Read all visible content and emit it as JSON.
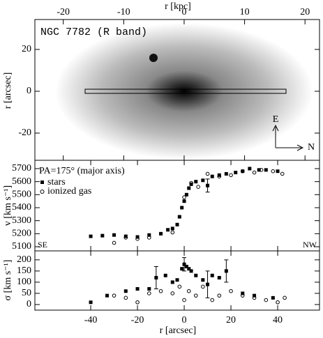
{
  "chart_data": [
    {
      "type": "image",
      "title": "NGC 7782 (R band)",
      "xlabel": "r [kpc]",
      "ylabel": "r [arcsec]",
      "xlim": [
        -24.7,
        22.4
      ],
      "xticks": [
        -20,
        -10,
        0,
        10,
        20
      ],
      "ylim": [
        -33,
        34.3
      ],
      "yticks": [
        -20,
        0,
        20
      ],
      "annotations": [
        "E",
        "N"
      ]
    },
    {
      "type": "scatter",
      "annotation": "PA=175° (major axis)",
      "ylabel": "v [km s⁻¹]",
      "corner_labels": [
        "SE",
        "NW"
      ],
      "xlim": [
        -63.9,
        57.9
      ],
      "ylim": [
        5068,
        5764
      ],
      "yticks": [
        5100,
        5200,
        5300,
        5400,
        5500,
        5600,
        5700
      ],
      "series": [
        {
          "name": "stars",
          "color": "#000000",
          "marker": "square",
          "x": [
            -40,
            -35,
            -30,
            -25,
            -20,
            -15,
            -10,
            -7,
            -5,
            -3,
            -2,
            -1,
            0,
            1,
            2,
            3,
            5,
            8,
            10,
            12,
            15,
            18,
            22,
            25,
            28,
            32,
            35,
            40
          ],
          "values": [
            5180,
            5185,
            5190,
            5180,
            5175,
            5190,
            5200,
            5230,
            5240,
            5270,
            5330,
            5400,
            5450,
            5500,
            5550,
            5580,
            5600,
            5610,
            5570,
            5640,
            5650,
            5660,
            5670,
            5680,
            5700,
            5690,
            5690,
            5680
          ],
          "errors": [
            null,
            null,
            null,
            null,
            null,
            null,
            null,
            null,
            null,
            null,
            null,
            null,
            null,
            null,
            null,
            null,
            null,
            null,
            50,
            null,
            null,
            null,
            null,
            null,
            null,
            null,
            null,
            null
          ]
        },
        {
          "name": "ionized gas",
          "color": "#000000",
          "marker": "circle",
          "x": [
            -30,
            -25,
            -20,
            -15,
            -5,
            0,
            3,
            6,
            10,
            15,
            20,
            25,
            30,
            33,
            38,
            42
          ],
          "values": [
            5130,
            5170,
            5160,
            5170,
            5210,
            5480,
            5590,
            5560,
            5660,
            5640,
            5650,
            5680,
            5670,
            5690,
            5680,
            5660
          ]
        }
      ]
    },
    {
      "type": "scatter",
      "ylabel": "σ [km s⁻¹]",
      "xlabel": "r [arcsec]",
      "xlim": [
        -63.9,
        57.9
      ],
      "xticks": [
        -40,
        -20,
        0,
        20,
        40
      ],
      "ylim": [
        -25,
        240
      ],
      "yticks": [
        0,
        50,
        100,
        150,
        200
      ],
      "series": [
        {
          "name": "stars",
          "color": "#000000",
          "marker": "square",
          "x": [
            -40,
            -33,
            -25,
            -20,
            -15,
            -12,
            -8,
            -5,
            -3,
            -1,
            0,
            1,
            2,
            3,
            5,
            8,
            10,
            12,
            15,
            18,
            25,
            30,
            38
          ],
          "values": [
            10,
            40,
            60,
            70,
            70,
            120,
            130,
            100,
            110,
            160,
            180,
            170,
            160,
            150,
            130,
            110,
            90,
            130,
            120,
            150,
            50,
            40,
            30
          ],
          "errors": [
            null,
            null,
            null,
            null,
            null,
            50,
            null,
            null,
            null,
            null,
            30,
            null,
            null,
            null,
            null,
            null,
            60,
            null,
            null,
            50,
            null,
            null,
            null
          ]
        },
        {
          "name": "ionized gas",
          "color": "#000000",
          "marker": "circle",
          "x": [
            -30,
            -25,
            -20,
            -15,
            -10,
            -5,
            -2,
            0,
            2,
            5,
            8,
            12,
            15,
            20,
            25,
            30,
            35,
            40,
            43
          ],
          "values": [
            40,
            30,
            10,
            50,
            60,
            50,
            80,
            20,
            60,
            40,
            80,
            20,
            40,
            60,
            40,
            30,
            20,
            10,
            30
          ]
        }
      ]
    }
  ]
}
